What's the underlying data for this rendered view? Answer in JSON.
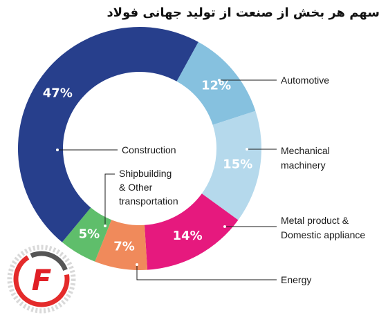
{
  "title": "سهم هر بخش از صنعت از تولید جهانی فولاد",
  "chart_data": {
    "type": "pie",
    "donut": true,
    "labels": [
      "Automotive",
      "Mechanical machinery",
      "Metal product & Domestic appliance",
      "Energy",
      "Shipbuilding & Other transportation",
      "Construction"
    ],
    "values": [
      12,
      15,
      14,
      7,
      5,
      47
    ],
    "percent_labels": [
      "12%",
      "15%",
      "14%",
      "7%",
      "5%",
      "47%"
    ],
    "colors": [
      "#86c1df",
      "#b5d9ec",
      "#e6197e",
      "#f08a5b",
      "#5fbe6b",
      "#273f8c"
    ]
  },
  "annotations": {
    "automotive": "Automotive",
    "mechanical_line1": "Mechanical",
    "mechanical_line2": "machinery",
    "metal_line1": "Metal product &",
    "metal_line2": "Domestic appliance",
    "energy": "Energy",
    "construction": "Construction",
    "ship_line1": "Shipbuilding",
    "ship_line2": "& Other",
    "ship_line3": "transportation"
  },
  "logo": {
    "letter": "F",
    "colors": {
      "ring_outer": "#d9d9d9",
      "ring_red": "#e42b2b",
      "letter": "#e01f26"
    }
  }
}
